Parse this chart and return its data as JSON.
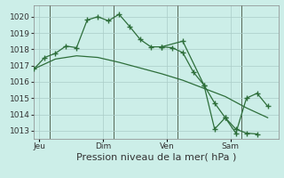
{
  "background_color": "#cceee8",
  "grid_color": "#aaccc8",
  "line_color": "#2d6e3a",
  "xlabel": "Pression niveau de la mer( hPa )",
  "xlabel_fontsize": 8,
  "ylim": [
    1012.5,
    1020.7
  ],
  "yticks": [
    1013,
    1014,
    1015,
    1016,
    1017,
    1018,
    1019,
    1020
  ],
  "day_labels": [
    "Jeu",
    "Dim",
    "Ven",
    "Sam"
  ],
  "day_positions": [
    0.5,
    6.5,
    12.5,
    18.5
  ],
  "xlim": [
    0,
    23
  ],
  "series_spiky_x": [
    0,
    1,
    2,
    3,
    4,
    5,
    6,
    7,
    8,
    9,
    10,
    11,
    12,
    13,
    14,
    15,
    16,
    17,
    18,
    19,
    20,
    21
  ],
  "series_spiky_y": [
    1016.8,
    1017.5,
    1017.75,
    1018.2,
    1018.1,
    1019.8,
    1020.0,
    1019.75,
    1020.15,
    1019.4,
    1018.6,
    1018.15,
    1018.15,
    1018.1,
    1017.8,
    1016.6,
    1015.8,
    1014.7,
    1013.8,
    1013.1,
    1012.85,
    1012.8
  ],
  "series_smooth_x": [
    0,
    2,
    4,
    6,
    8,
    10,
    12,
    14,
    16,
    18,
    20,
    22
  ],
  "series_smooth_y": [
    1016.8,
    1017.4,
    1017.6,
    1017.5,
    1017.2,
    1016.85,
    1016.5,
    1016.1,
    1015.6,
    1015.1,
    1014.4,
    1013.8
  ],
  "series_right_x": [
    12,
    14,
    16,
    17,
    18,
    19,
    20,
    21,
    22
  ],
  "series_right_y": [
    1018.15,
    1018.5,
    1015.8,
    1013.1,
    1013.8,
    1012.85,
    1015.0,
    1015.3,
    1014.5
  ],
  "vline_positions": [
    1.5,
    7.5,
    13.5,
    19.5
  ],
  "tick_fontsize": 6.5
}
